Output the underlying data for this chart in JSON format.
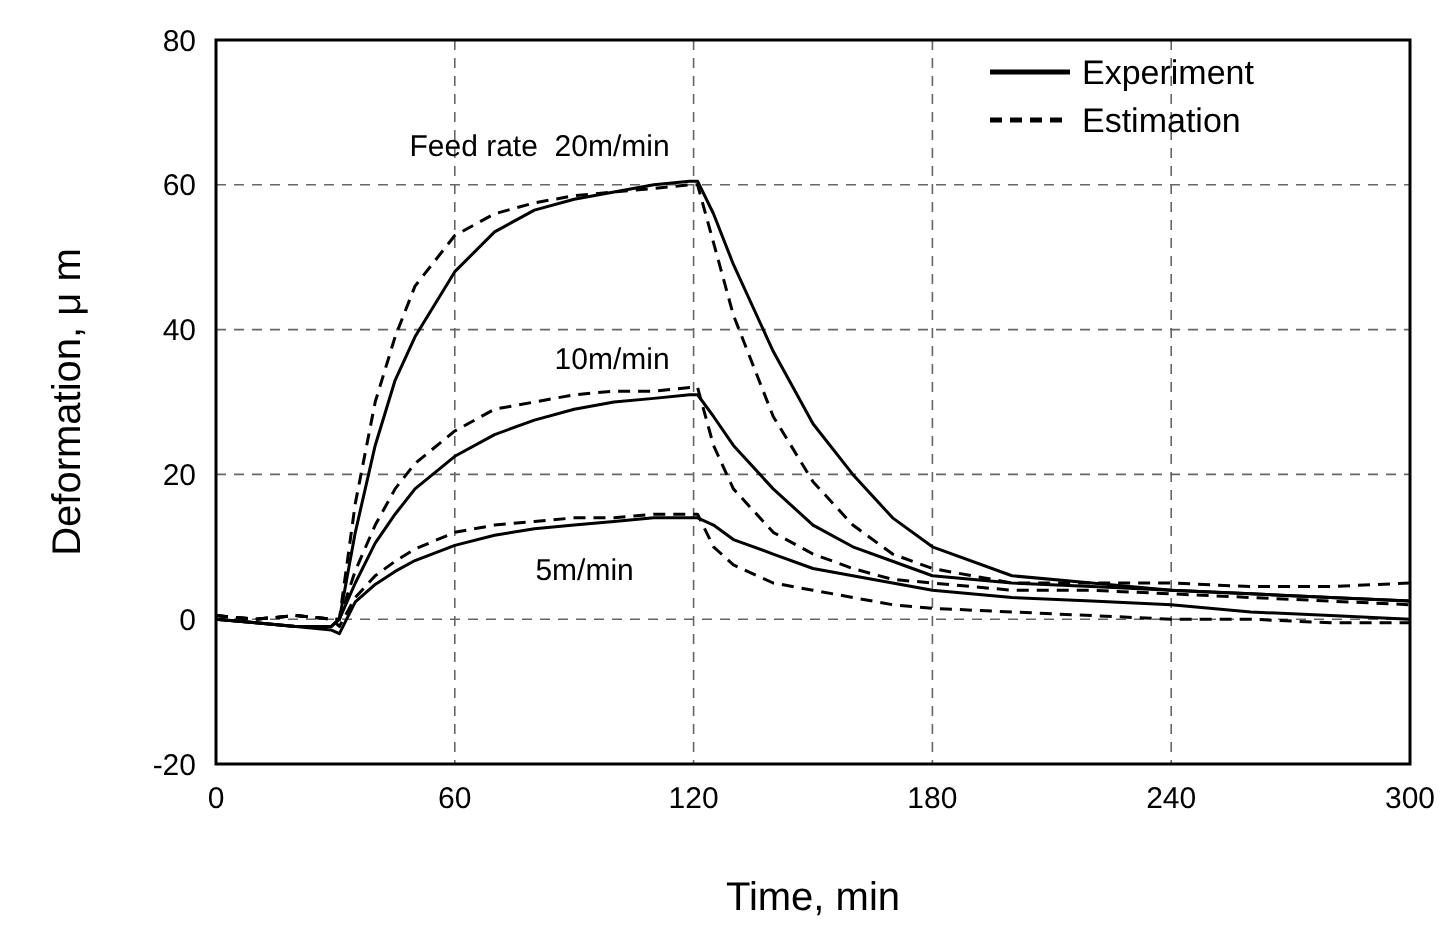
{
  "chart_data": {
    "type": "line",
    "xlabel": "Time, min",
    "ylabel": "Deformation, μ m",
    "x": [
      0,
      10,
      20,
      29,
      31,
      35,
      40,
      45,
      50,
      60,
      70,
      80,
      90,
      100,
      110,
      119,
      121,
      125,
      130,
      140,
      150,
      160,
      170,
      180,
      200,
      220,
      240,
      260,
      280,
      300
    ],
    "series": [
      {
        "name": "Experiment",
        "color": "#000000",
        "line_style": "solid",
        "values": [
          0,
          -0.5,
          -1,
          -1,
          0,
          12,
          24,
          33,
          39,
          48,
          53.5,
          56.5,
          58,
          59,
          60,
          60.5,
          60.5,
          56,
          49,
          37,
          27,
          20,
          14,
          10,
          6,
          5,
          4,
          3.5,
          3,
          2.5
        ]
      },
      {
        "name": "Estimation",
        "color": "#000000",
        "line_style": "dashed",
        "values": [
          0.5,
          0,
          0.5,
          0,
          0,
          16,
          30,
          39,
          46,
          53,
          56,
          57.5,
          58.5,
          59,
          59.5,
          60,
          60,
          52,
          42,
          28,
          19,
          13,
          9,
          7,
          5,
          5,
          5,
          4.5,
          4.5,
          5
        ]
      },
      {
        "color": "#000000",
        "line_style": "solid",
        "values": [
          0,
          -0.5,
          -1,
          -1,
          0,
          5,
          10.5,
          14.5,
          18,
          22.5,
          25.5,
          27.5,
          29,
          30,
          30.5,
          31,
          31,
          28,
          24,
          18,
          13,
          10,
          8,
          6,
          5,
          4.5,
          4,
          3.5,
          3,
          2.5
        ]
      },
      {
        "color": "#000000",
        "line_style": "dashed",
        "values": [
          0.5,
          0,
          0.5,
          0,
          0,
          6.7,
          13,
          18,
          21.5,
          26,
          29,
          30,
          31,
          31.5,
          31.5,
          32,
          32,
          24,
          18,
          12,
          9,
          7,
          5.5,
          5,
          4,
          4,
          3.5,
          3,
          2.5,
          2
        ]
      },
      {
        "color": "#000000",
        "line_style": "solid",
        "values": [
          0,
          -0.5,
          -1,
          -1.5,
          -2,
          2.4,
          4.8,
          6.6,
          8.1,
          10.2,
          11.6,
          12.5,
          13,
          13.5,
          14,
          14,
          14,
          13,
          11,
          9,
          7,
          6,
          5,
          4,
          3,
          2.5,
          2,
          1,
          0.5,
          0
        ]
      },
      {
        "color": "#000000",
        "line_style": "dashed",
        "values": [
          0.5,
          0,
          0.5,
          0,
          -1,
          3,
          6,
          8,
          9.7,
          12,
          13,
          13.5,
          14,
          14,
          14.5,
          14.5,
          14.5,
          10,
          7.5,
          5,
          4,
          3,
          2,
          1.5,
          1,
          0.5,
          0,
          0,
          -0.5,
          -0.5
        ]
      }
    ],
    "annotations": [
      "Feed rate  20m/min",
      "10m/min",
      "5m/min"
    ],
    "xlim": [
      0,
      300
    ],
    "xticks": [
      0,
      60,
      120,
      180,
      240,
      300
    ],
    "ylim": [
      -20,
      80
    ],
    "yticks": [
      -20,
      0,
      20,
      40,
      60,
      80
    ],
    "grid": true,
    "legend": "top right"
  }
}
